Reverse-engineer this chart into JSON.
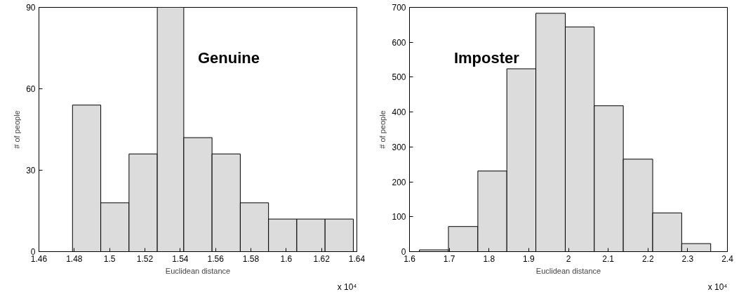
{
  "chart_data": [
    {
      "type": "histogram",
      "bins": [
        1.479,
        1.495,
        1.511,
        1.527,
        1.542,
        1.558,
        1.574,
        1.59,
        1.606,
        1.622,
        1.638
      ],
      "values": [
        54,
        18,
        36,
        90,
        42,
        36,
        18,
        12,
        12,
        12
      ],
      "color": "#dcdcdc",
      "xlabel": "Euclidean distance",
      "ylabel": "# of people",
      "xlim": [
        1.46,
        1.64
      ],
      "xticks": [
        1.46,
        1.48,
        1.5,
        1.52,
        1.54,
        1.56,
        1.58,
        1.6,
        1.62,
        1.64
      ],
      "ylim": [
        0,
        90
      ],
      "yticks": [
        0,
        30,
        60,
        90
      ],
      "annotations": [
        "Genuine",
        "x 10⁴"
      ],
      "grid": false
    },
    {
      "type": "histogram",
      "bins": [
        1.625,
        1.698,
        1.772,
        1.845,
        1.918,
        1.992,
        2.065,
        2.138,
        2.212,
        2.285,
        2.358
      ],
      "values": [
        5,
        72,
        231,
        524,
        683,
        644,
        418,
        265,
        111,
        23
      ],
      "color": "#dcdcdc",
      "xlabel": "Euclidean distance",
      "ylabel": "# of people",
      "xlim": [
        1.6,
        2.4
      ],
      "xticks": [
        1.6,
        1.7,
        1.8,
        1.9,
        2,
        2.1,
        2.2,
        2.3,
        2.4
      ],
      "ylim": [
        0,
        700
      ],
      "yticks": [
        0,
        100,
        200,
        300,
        400,
        500,
        600,
        700
      ],
      "annotations": [
        "Imposter",
        "x 10⁴"
      ],
      "grid": false
    }
  ]
}
